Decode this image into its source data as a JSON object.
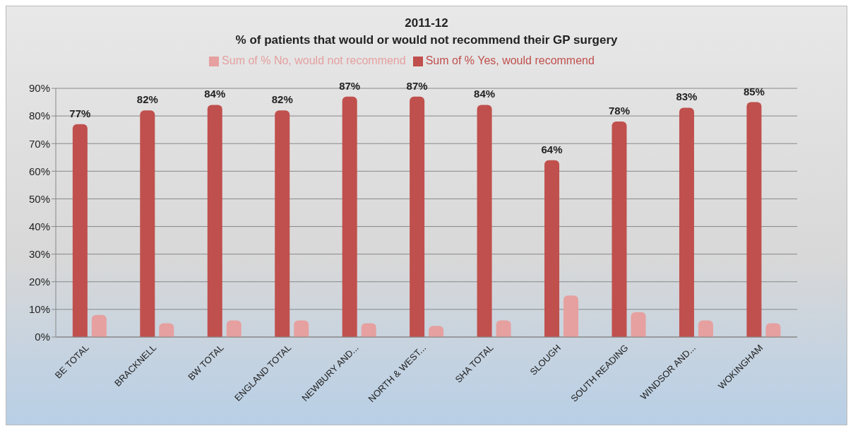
{
  "chart_data": {
    "type": "bar",
    "title": "2011-12",
    "subtitle": "% of patients that would or would not recommend their GP surgery",
    "categories": [
      "BE TOTAL",
      "BRACKNELL",
      "BW TOTAL",
      "ENGLAND TOTAL",
      "NEWBURY AND...",
      "NORTH & WEST...",
      "SHA TOTAL",
      "SLOUGH",
      "SOUTH READING",
      "WINDSOR AND...",
      "WOKINGHAM"
    ],
    "series": [
      {
        "name": "Sum of % Yes, would recommend",
        "color": "#c0504d",
        "values": [
          77,
          82,
          84,
          82,
          87,
          87,
          84,
          64,
          78,
          83,
          85
        ],
        "value_labels": [
          "77%",
          "82%",
          "84%",
          "82%",
          "87%",
          "87%",
          "84%",
          "64%",
          "78%",
          "83%",
          "85%"
        ]
      },
      {
        "name": "Sum of % No, would not recommend",
        "color": "#e6a0a0",
        "values": [
          8,
          5,
          6,
          6,
          5,
          4,
          6,
          15,
          9,
          6,
          5
        ]
      }
    ],
    "ylim": [
      0,
      90
    ],
    "yticks": [
      {
        "value": 0,
        "label": "0%"
      },
      {
        "value": 10,
        "label": "10%"
      },
      {
        "value": 20,
        "label": "20%"
      },
      {
        "value": 30,
        "label": "30%"
      },
      {
        "value": 40,
        "label": "40%"
      },
      {
        "value": 50,
        "label": "50%"
      },
      {
        "value": 60,
        "label": "60%"
      },
      {
        "value": 70,
        "label": "70%"
      },
      {
        "value": 80,
        "label": "80%"
      },
      {
        "value": 90,
        "label": "90%"
      }
    ],
    "grid": "y",
    "legend": "top"
  }
}
